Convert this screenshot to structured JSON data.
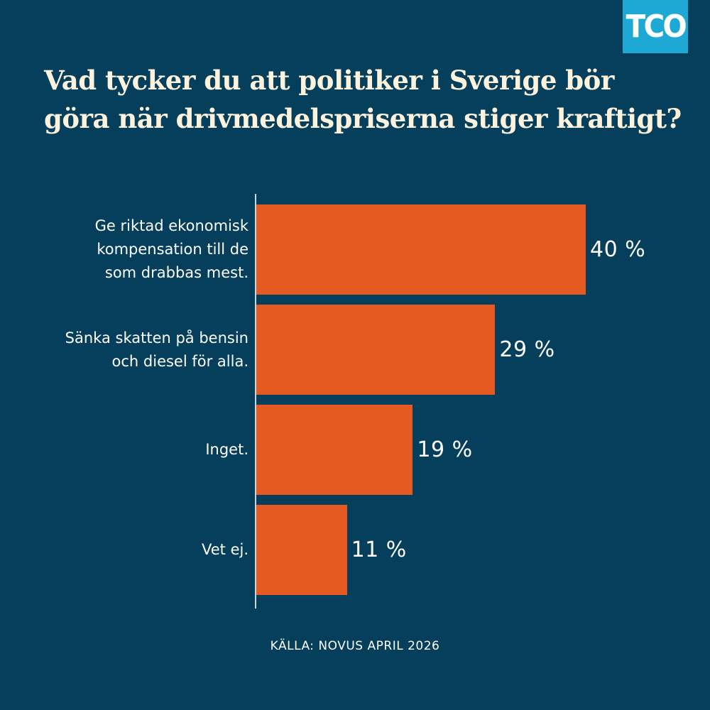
{
  "brand": {
    "logo_text": "TCO",
    "logo_color": "#1ea9d4",
    "background_color": "#053f5c",
    "bar_color": "#e55a21"
  },
  "title": "Vad tycker du att politiker i Sverige bör göra när drivmedelspriserna stiger kraftigt?",
  "source": "KÄLLA: NOVUS APRIL 2026",
  "chart_data": {
    "type": "bar",
    "orientation": "horizontal",
    "categories": [
      "Ge riktad ekonomisk kompensation till de som drabbas mest.",
      "Sänka skatten på bensin och diesel för alla.",
      "Inget.",
      "Vet ej."
    ],
    "values": [
      40,
      29,
      19,
      11
    ],
    "value_labels": [
      "40 %",
      "29 %",
      "19 %",
      "11 %"
    ],
    "xlim": [
      0,
      50
    ],
    "grid": false
  }
}
